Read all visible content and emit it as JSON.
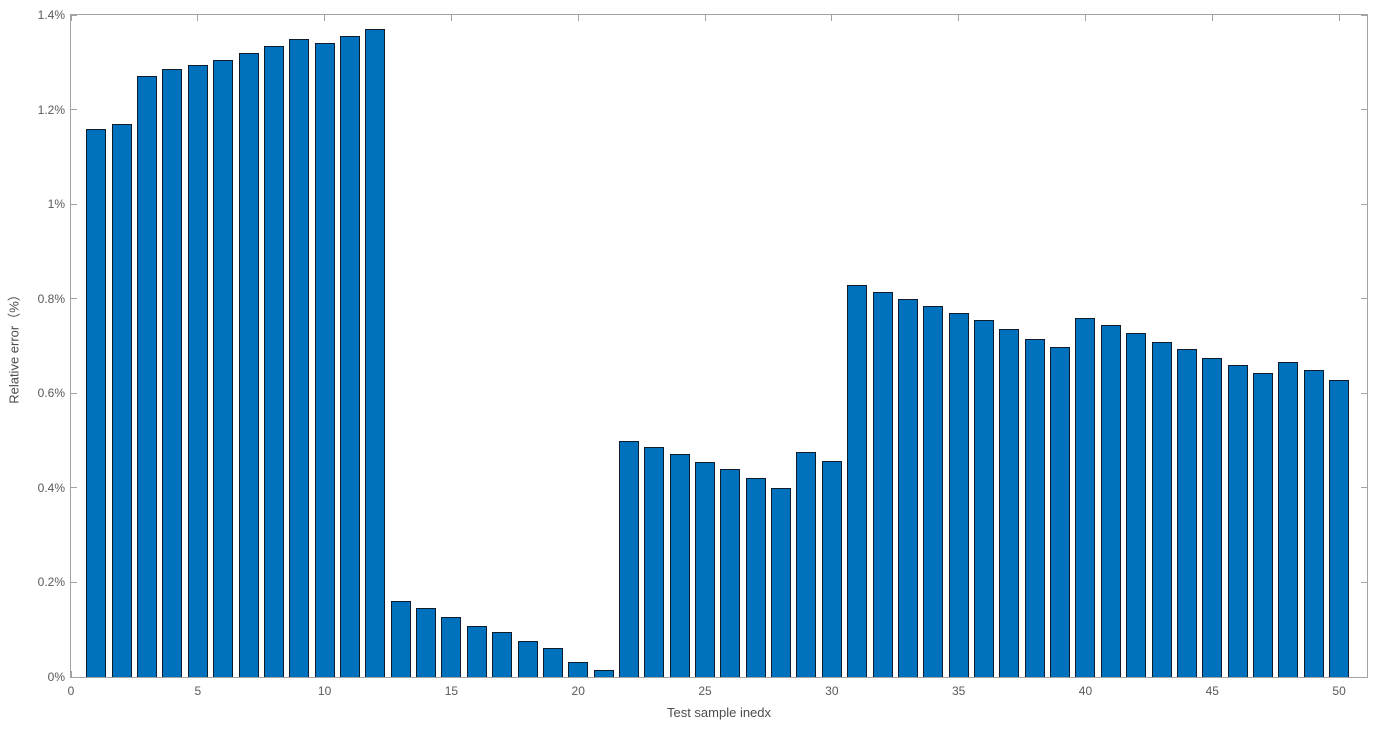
{
  "figure": {
    "background": "#ffffff",
    "axis_frame_color": "#a3a3a3",
    "tick_text_color": "#595959",
    "label_text_color": "#4d4d4d"
  },
  "chart_data": {
    "type": "bar",
    "title": "",
    "xlabel": "Test sample inedx",
    "ylabel": "Relative error（%）",
    "bar_fill_color": "#0072BD",
    "bar_edge_color": "#0e1c2c",
    "grid": false,
    "legend": null,
    "xlim": [
      0,
      51.1
    ],
    "ylim": [
      0,
      1.4
    ],
    "xticks": [
      0,
      5,
      10,
      15,
      20,
      25,
      30,
      35,
      40,
      45,
      50
    ],
    "xtick_labels": [
      "0",
      "5",
      "10",
      "15",
      "20",
      "25",
      "30",
      "35",
      "40",
      "45",
      "50"
    ],
    "yticks": [
      0,
      0.2,
      0.4,
      0.6,
      0.8,
      1.0,
      1.2,
      1.4
    ],
    "ytick_labels": [
      "0%",
      "0.2%",
      "0.4%",
      "0.6%",
      "0.8%",
      "1%",
      "1.2%",
      "1.4%"
    ],
    "x": [
      1,
      2,
      3,
      4,
      5,
      6,
      7,
      8,
      9,
      10,
      11,
      12,
      13,
      14,
      15,
      16,
      17,
      18,
      19,
      20,
      21,
      22,
      23,
      24,
      25,
      26,
      27,
      28,
      29,
      30,
      31,
      32,
      33,
      34,
      35,
      36,
      37,
      38,
      39,
      40,
      41,
      42,
      43,
      44,
      45,
      46,
      47,
      48,
      49,
      50
    ],
    "values": [
      1.16,
      1.17,
      1.27,
      1.285,
      1.295,
      1.305,
      1.32,
      1.335,
      1.35,
      1.34,
      1.355,
      1.37,
      0.16,
      0.145,
      0.126,
      0.108,
      0.095,
      0.076,
      0.061,
      0.032,
      0.015,
      0.5,
      0.487,
      0.472,
      0.455,
      0.44,
      0.42,
      0.4,
      0.475,
      0.456,
      0.83,
      0.815,
      0.8,
      0.785,
      0.77,
      0.755,
      0.737,
      0.715,
      0.697,
      0.76,
      0.744,
      0.727,
      0.708,
      0.694,
      0.675,
      0.66,
      0.643,
      0.666,
      0.649,
      0.628
    ]
  }
}
